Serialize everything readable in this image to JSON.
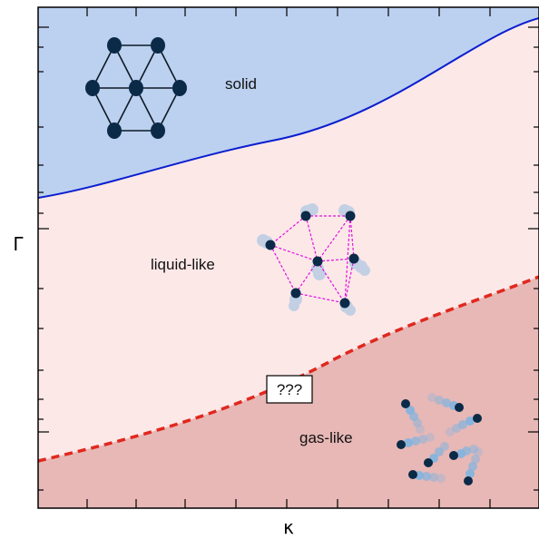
{
  "axes": {
    "xlabel": "κ",
    "ylabel": "Γ"
  },
  "regions": {
    "solid": {
      "label": "solid",
      "color": "#bcd0f0"
    },
    "liquid": {
      "label": "liquid-like",
      "color": "#fde8e8"
    },
    "gas": {
      "label": "gas-like",
      "color": "#e7b8b6"
    }
  },
  "boundaries": {
    "solid_liquid": {
      "style": "solid",
      "color": "#0a1ecf"
    },
    "liquid_gas": {
      "style": "dashed",
      "color": "#e0281e"
    }
  },
  "annotation": {
    "text": "???"
  },
  "icons": {
    "solid": "hexagonal-lattice-icon",
    "liquid": "liquid-network-icon",
    "gas": "gas-particles-icon"
  },
  "colors": {
    "particle": "#0b2a48",
    "lattice_bond": "#0d1a26",
    "network_bond": "#e010e0",
    "trail": "#7fb4e0"
  }
}
